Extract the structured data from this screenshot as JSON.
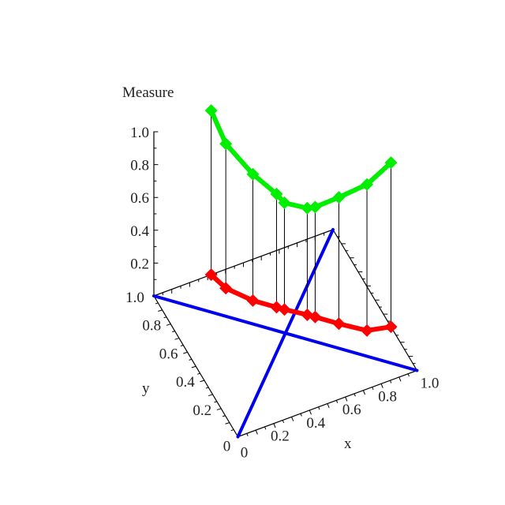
{
  "chart_data": {
    "type": "line",
    "projection": "3d",
    "zlabel": "Measure",
    "xlabel": "x",
    "ylabel": "y",
    "xlim": [
      0,
      1
    ],
    "ylim": [
      0,
      1
    ],
    "zlim": [
      0,
      1
    ],
    "x_ticks": [
      "0",
      "0.2",
      "0.4",
      "0.6",
      "0.8",
      "1.0"
    ],
    "y_ticks": [
      "0",
      "0.2",
      "0.4",
      "0.6",
      "0.8",
      "1.0"
    ],
    "z_ticks": [
      "0.2",
      "0.4",
      "0.6",
      "0.8",
      "1.0"
    ],
    "grid": false,
    "colors": {
      "green": "#00ee00",
      "red": "#ff0000",
      "blue": "#0000ee",
      "axes": "#000000"
    },
    "points": [
      {
        "x": 0.32,
        "y": 1.0,
        "measure": 1.0
      },
      {
        "x": 0.35,
        "y": 0.89,
        "measure": 0.88
      },
      {
        "x": 0.44,
        "y": 0.76,
        "measure": 0.77
      },
      {
        "x": 0.53,
        "y": 0.67,
        "measure": 0.69
      },
      {
        "x": 0.56,
        "y": 0.64,
        "measure": 0.65
      },
      {
        "x": 0.65,
        "y": 0.56,
        "measure": 0.65
      },
      {
        "x": 0.68,
        "y": 0.53,
        "measure": 0.67
      },
      {
        "x": 0.77,
        "y": 0.44,
        "measure": 0.77
      },
      {
        "x": 0.88,
        "y": 0.34,
        "measure": 0.89
      },
      {
        "x": 1.0,
        "y": 0.31,
        "measure": 1.0
      }
    ],
    "blue_lines": [
      [
        [
          0,
          0
        ],
        [
          1,
          1
        ]
      ],
      [
        [
          0,
          1
        ],
        [
          1,
          0
        ]
      ]
    ]
  }
}
